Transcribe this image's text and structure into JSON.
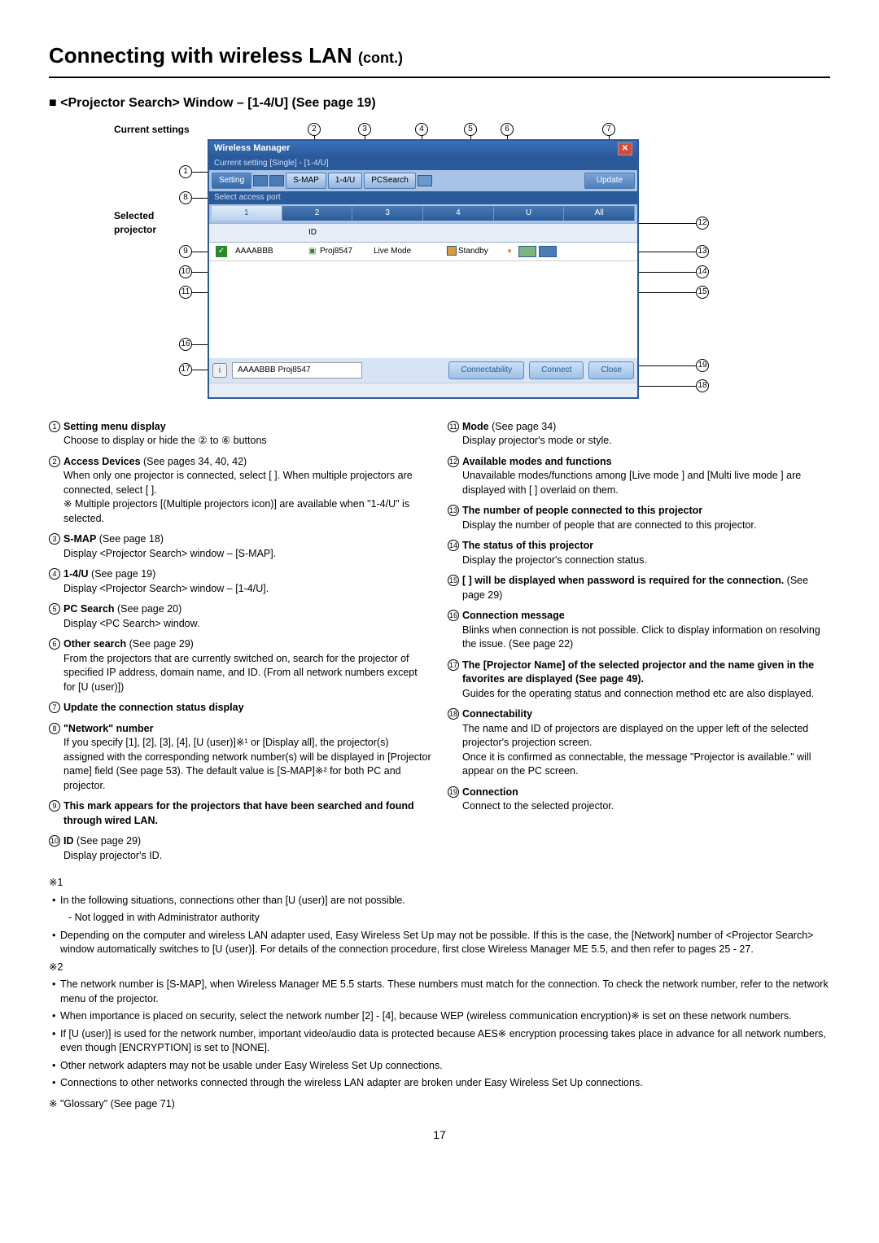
{
  "page": {
    "title": "Connecting with wireless LAN",
    "title_suffix": "(cont.)",
    "subtitle": "■ <Projector Search> Window – [1-4/U] (See page 19)",
    "page_number": "17"
  },
  "labels": {
    "current_settings": "Current settings",
    "selected_projector": "Selected projector"
  },
  "window": {
    "title": "Wireless Manager",
    "subtitle": "Current setting  [Single] - [1-4/U]",
    "close": "✕",
    "setting": "Setting",
    "smap": "S-MAP",
    "oneu": "1-4/U",
    "pcsearch": "PCSearch",
    "update": "Update",
    "select_port": "Select access port",
    "tabs": [
      "1",
      "2",
      "3",
      "4",
      "U",
      "All"
    ],
    "hdr_id": "ID",
    "row_name": "AAAABBB",
    "row_proj": "Proj8547",
    "row_mode": "Live Mode",
    "row_status": "Standby",
    "info": "i",
    "namebox": "AAAABBB Proj8547",
    "connectability": "Connectability",
    "connect": "Connect",
    "close_btn": "Close"
  },
  "callouts": {
    "n1": "1",
    "n2": "2",
    "n3": "3",
    "n4": "4",
    "n5": "5",
    "n6": "6",
    "n7": "7",
    "n8": "8",
    "n9": "9",
    "n10": "10",
    "n11": "11",
    "n12": "12",
    "n13": "13",
    "n14": "14",
    "n15": "15",
    "n16": "16",
    "n17": "17",
    "n18": "18",
    "n19": "19"
  },
  "left_items": [
    {
      "n": "1",
      "b": "Setting menu display",
      "t": "Choose to display or hide the ② to ⑥ buttons"
    },
    {
      "n": "2",
      "b": "Access Devices",
      "ref": " (See pages 34, 40, 42)",
      "t": "When only one projector is connected, select [  ]. When multiple projectors are connected, select [  ].\n※ Multiple projectors [(Multiple projectors icon)] are available when \"1-4/U\" is selected."
    },
    {
      "n": "3",
      "b": "S-MAP",
      "ref": " (See page 18)",
      "t": "Display <Projector Search> window – [S-MAP]."
    },
    {
      "n": "4",
      "b": "1-4/U",
      "ref": " (See page 19)",
      "t": "Display <Projector Search> window – [1-4/U]."
    },
    {
      "n": "5",
      "b": "PC Search",
      "ref": " (See page 20)",
      "t": "Display <PC Search> window."
    },
    {
      "n": "6",
      "b": "Other search",
      "ref": " (See page 29)",
      "t": "From the projectors that are currently switched on, search for the projector of specified IP address, domain name, and ID. (From all network numbers except for [U (user)])"
    },
    {
      "n": "7",
      "b": "Update the connection status display",
      "t": ""
    },
    {
      "n": "8",
      "b": "\"Network\" number",
      "t": "If you specify [1], [2], [3], [4], [U (user)]※¹ or [Display all], the projector(s) assigned with the corresponding network number(s) will be displayed in [Projector name] field (See page 53). The default value is [S-MAP]※² for both PC and projector."
    },
    {
      "n": "9",
      "b": "This mark appears for the projectors that have been searched and found through wired LAN.",
      "t": ""
    },
    {
      "n": "10",
      "b": "ID",
      "ref": " (See page 29)",
      "t": "Display projector's ID."
    }
  ],
  "right_items": [
    {
      "n": "11",
      "b": "Mode",
      "ref": " (See page 34)",
      "t": "Display projector's mode or style."
    },
    {
      "n": "12",
      "b": "Available modes and functions",
      "t": "Unavailable modes/functions among [Live mode  ] and [Multi live mode  ] are displayed with [  ] overlaid on them."
    },
    {
      "n": "13",
      "b": "The number of people connected to this projector",
      "t": "Display the number of people that are connected to this projector."
    },
    {
      "n": "14",
      "b": "The status of this projector",
      "t": "Display the projector's connection status."
    },
    {
      "n": "15",
      "b": "[  ] will be displayed when password is required for the connection.",
      "ref": " (See page 29)",
      "t": ""
    },
    {
      "n": "16",
      "b": "Connection message",
      "t": "Blinks when connection is not possible. Click to display information on resolving the issue. (See page 22)"
    },
    {
      "n": "17",
      "b": "The [Projector Name] of the selected projector and the name given in the favorites are displayed (See page 49).",
      "t": "Guides for the operating status and connection method etc are also displayed."
    },
    {
      "n": "18",
      "b": "Connectability",
      "t": "The name and ID of projectors are displayed on the upper left of the selected projector's projection screen.\nOnce it is confirmed as connectable, the message \"Projector is available.\" will appear on the PC screen."
    },
    {
      "n": "19",
      "b": "Connection",
      "t": "Connect to the selected projector."
    }
  ],
  "foot": {
    "f1": "※1",
    "f1_a": "In the following situations, connections other than [U (user)] are not possible.",
    "f1_a1": "- Not logged in with Administrator authority",
    "f1_b": "Depending on the computer and wireless LAN adapter used, Easy Wireless Set Up may not be possible. If this is the case, the [Network] number of <Projector Search> window automatically switches to [U (user)]. For details of the connection procedure, first close Wireless Manager ME 5.5, and then refer to pages 25 - 27.",
    "f2": "※2",
    "f2_a": "The network number is [S-MAP], when Wireless Manager ME 5.5 starts. These numbers must match for the connection. To check the network number, refer to the network menu of the projector.",
    "f2_b": "When importance is placed on security, select the network number [2] - [4], because WEP (wireless communication encryption)※ is set on these network numbers.",
    "f2_c": "If [U (user)] is used for the network number, important video/audio data is protected because AES※ encryption processing takes place in advance for all network numbers, even though [ENCRYPTION] is set to [NONE].",
    "f2_d": "Other network adapters may not be usable under Easy Wireless Set Up connections.",
    "f2_e": "Connections to other networks connected through the wireless LAN adapter are broken under Easy Wireless Set Up connections.",
    "glossary": "※ \"Glossary\" (See page 71)"
  }
}
